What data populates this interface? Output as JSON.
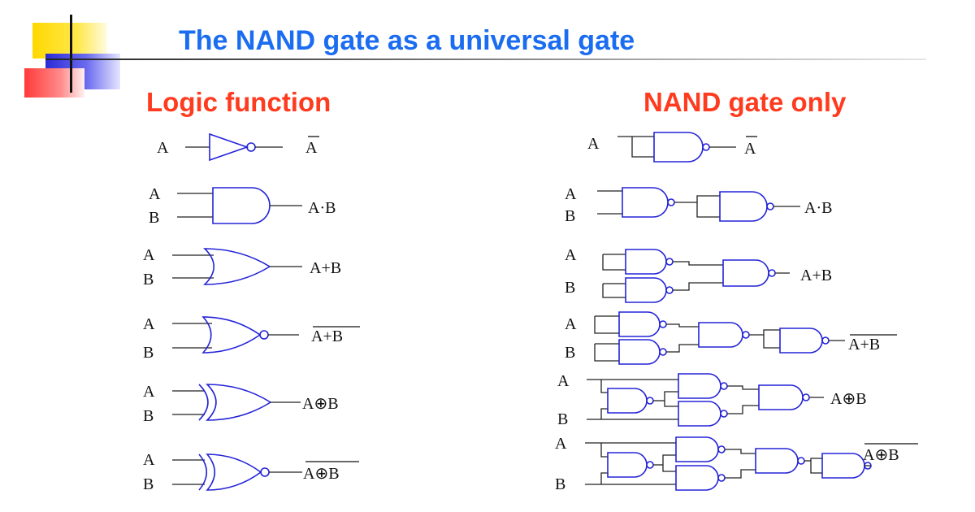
{
  "slide": {
    "title": "The NAND gate as a universal gate",
    "left_heading": "Logic function",
    "right_heading": "NAND gate only"
  },
  "colors": {
    "title": "#1a6cf0",
    "headings": "#ff3b1f",
    "gates": "#2323d8",
    "xor_labels": "#ff3b1f",
    "xnor_labels": "#1a6cf0"
  },
  "rows": [
    {
      "name": "NOT",
      "inputs": [
        "A"
      ],
      "left_output": "A",
      "right_output": "A",
      "overline": true
    },
    {
      "name": "AND",
      "inputs": [
        "A",
        "B"
      ],
      "left_output": "A·B",
      "right_output": "A·B",
      "overline": false
    },
    {
      "name": "OR",
      "inputs": [
        "A",
        "B"
      ],
      "left_output": "A+B",
      "right_output": "A+B",
      "overline": false
    },
    {
      "name": "NOR",
      "inputs": [
        "A",
        "B"
      ],
      "left_output": "A+B",
      "right_output": "A+B",
      "overline": true
    },
    {
      "name": "XOR",
      "inputs": [
        "A",
        "B"
      ],
      "left_output": "A⊕B",
      "right_output": "A⊕B",
      "overline": false
    },
    {
      "name": "XNOR",
      "inputs": [
        "A",
        "B"
      ],
      "left_output": "A⊕B",
      "right_output": "A⊕B",
      "overline": true
    }
  ]
}
